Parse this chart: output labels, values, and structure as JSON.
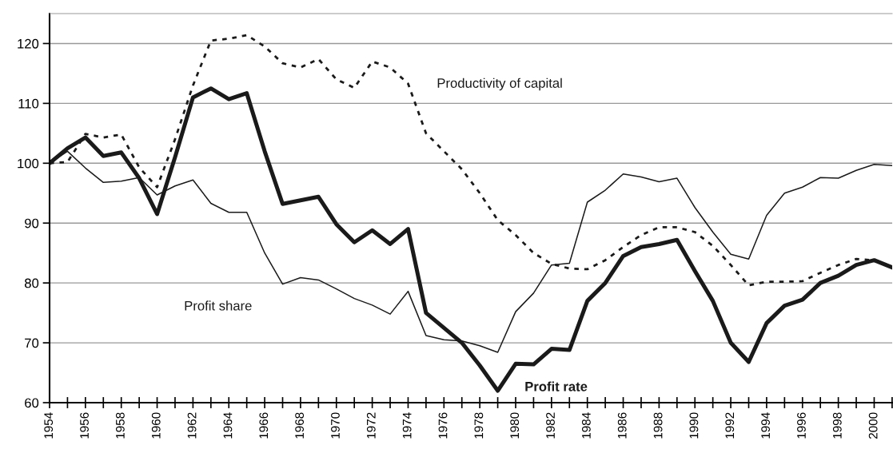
{
  "chart_data": {
    "type": "line",
    "x": [
      1954,
      1955,
      1956,
      1957,
      1958,
      1959,
      1960,
      1961,
      1962,
      1963,
      1964,
      1965,
      1966,
      1967,
      1968,
      1969,
      1970,
      1971,
      1972,
      1973,
      1974,
      1975,
      1976,
      1977,
      1978,
      1979,
      1980,
      1981,
      1982,
      1983,
      1984,
      1985,
      1986,
      1987,
      1988,
      1989,
      1990,
      1991,
      1992,
      1993,
      1994,
      1995,
      1996,
      1997,
      1998,
      1999,
      2000,
      2001
    ],
    "series": [
      {
        "name": "Productivity of capital",
        "color": "#1a1a1a",
        "line_style": "dotted",
        "values": [
          100,
          100.2,
          104.9,
          104.3,
          104.8,
          99.3,
          96,
          104,
          113,
          120.5,
          120.8,
          121.4,
          119.5,
          116.7,
          116,
          117.4,
          114,
          112.6,
          117,
          116,
          113.3,
          105,
          102,
          99,
          95,
          90.5,
          88,
          85,
          83.2,
          82.4,
          82.3,
          83.8,
          86,
          88,
          89.3,
          89.3,
          88.5,
          86.2,
          83,
          79.6,
          80.2,
          80.2,
          80.3,
          81.7,
          83,
          84,
          83.8,
          82.6
        ]
      },
      {
        "name": "Profit share",
        "color": "#1a1a1a",
        "line_style": "solid",
        "values": [
          100,
          102,
          99.2,
          96.8,
          97,
          97.6,
          94.7,
          96.2,
          97.2,
          93.3,
          91.8,
          91.8,
          85,
          79.8,
          80.9,
          80.5,
          79,
          77.4,
          76.3,
          74.8,
          78.6,
          71.2,
          70.5,
          70.3,
          69.5,
          68.4,
          75.2,
          78.3,
          83,
          83.3,
          93.5,
          95.5,
          98.2,
          97.7,
          96.9,
          97.5,
          92.6,
          88.5,
          84.8,
          84,
          91.3,
          95,
          96,
          97.6,
          97.5,
          98.8,
          99.8,
          99.6
        ]
      },
      {
        "name": "Profit rate",
        "color": "#1a1a1a",
        "line_style": "solid",
        "values": [
          100,
          102.5,
          104.3,
          101.2,
          101.8,
          97.5,
          91.5,
          101,
          111,
          112.5,
          110.7,
          111.7,
          102,
          93.2,
          93.8,
          94.4,
          89.8,
          86.8,
          88.8,
          86.5,
          89,
          75,
          72.5,
          70,
          66.2,
          62,
          66.5,
          66.4,
          69,
          68.8,
          77,
          80,
          84.5,
          86,
          86.5,
          87.2,
          82,
          77,
          70,
          66.8,
          73.3,
          76.2,
          77.2,
          80,
          81.2,
          83,
          83.8,
          82.6
        ]
      }
    ],
    "xlim": [
      1954,
      2001
    ],
    "xticks": [
      1954,
      {
        "value": 1955,
        "label": null
      },
      1956,
      {
        "value": 1957,
        "label": null
      },
      1958,
      {
        "value": 1959,
        "label": null
      },
      1960,
      {
        "value": 1961,
        "label": null
      },
      1962,
      {
        "value": 1963,
        "label": null
      },
      1964,
      {
        "value": 1965,
        "label": null
      },
      1966,
      {
        "value": 1967,
        "label": null
      },
      1968,
      {
        "value": 1969,
        "label": null
      },
      1970,
      {
        "value": 1971,
        "label": null
      },
      1972,
      {
        "value": 1973,
        "label": null
      },
      1974,
      {
        "value": 1975,
        "label": null
      },
      1976,
      {
        "value": 1977,
        "label": null
      },
      1978,
      {
        "value": 1979,
        "label": null
      },
      1980,
      {
        "value": 1981,
        "label": null
      },
      1982,
      {
        "value": 1983,
        "label": null
      },
      1984,
      {
        "value": 1985,
        "label": null
      },
      1986,
      {
        "value": 1987,
        "label": null
      },
      1988,
      {
        "value": 1989,
        "label": null
      },
      1990,
      {
        "value": 1991,
        "label": null
      },
      1992,
      {
        "value": 1993,
        "label": null
      },
      1994,
      {
        "value": 1995,
        "label": null
      },
      1996,
      {
        "value": 1997,
        "label": null
      },
      1998,
      {
        "value": 1999,
        "label": null
      },
      2000,
      {
        "value": 2001,
        "label": null
      }
    ],
    "ylim": [
      60,
      125
    ],
    "yticks": [
      60,
      70,
      80,
      90,
      100,
      110,
      120
    ],
    "grid": "y",
    "legend": false,
    "marker": "none"
  }
}
